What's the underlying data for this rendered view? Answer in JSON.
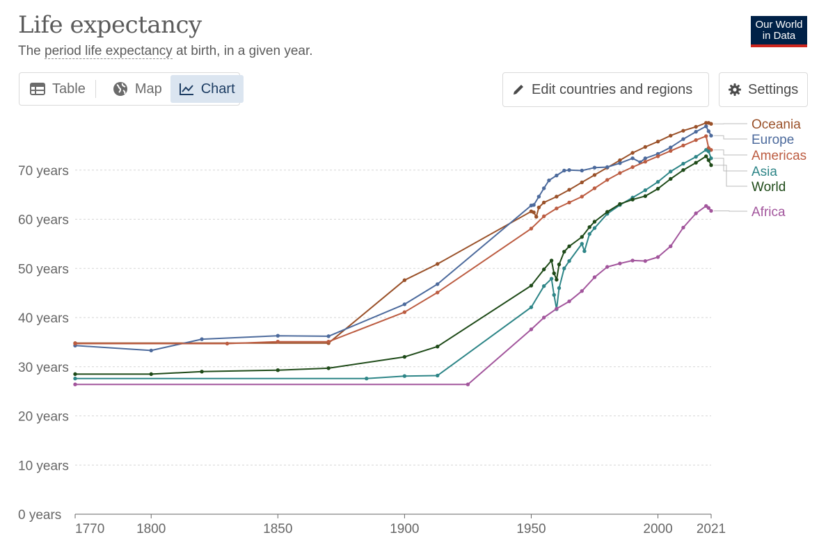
{
  "header": {
    "title": "Life expectancy",
    "subtitle_pre": "The ",
    "subtitle_link": "period life expectancy",
    "subtitle_post": " at birth, in a given year.",
    "logo_line1": "Our World",
    "logo_line2": "in Data"
  },
  "tabs": [
    {
      "label": "Table",
      "icon": "table-icon"
    },
    {
      "label": "Map",
      "icon": "globe-icon"
    },
    {
      "label": "Chart",
      "icon": "line-chart-icon",
      "active": true
    }
  ],
  "controls": {
    "edit_label": "Edit countries and regions",
    "settings_label": "Settings"
  },
  "chart_data": {
    "type": "line",
    "title": "Life expectancy",
    "xlim": [
      1770,
      2021
    ],
    "ylim": [
      0,
      80
    ],
    "x_ticks": [
      {
        "value": 1770,
        "label": "1770"
      },
      {
        "value": 1800,
        "label": "1800"
      },
      {
        "value": 1850,
        "label": "1850"
      },
      {
        "value": 1900,
        "label": "1900"
      },
      {
        "value": 1950,
        "label": "1950"
      },
      {
        "value": 2000,
        "label": "2000"
      },
      {
        "value": 2021,
        "label": "2021"
      }
    ],
    "y_ticks": [
      {
        "value": 0,
        "label": "0 years"
      },
      {
        "value": 10,
        "label": "10 years"
      },
      {
        "value": 20,
        "label": "20 years"
      },
      {
        "value": 30,
        "label": "30 years"
      },
      {
        "value": 40,
        "label": "40 years"
      },
      {
        "value": 50,
        "label": "50 years"
      },
      {
        "value": 60,
        "label": "60 years"
      },
      {
        "value": 70,
        "label": "70 years"
      }
    ],
    "grid": true,
    "legend_position": "right",
    "series": [
      {
        "name": "Oceania",
        "color": "#9a5129",
        "last_value": 79.4,
        "points": [
          [
            1770,
            34.8
          ],
          [
            1870,
            34.8
          ],
          [
            1900,
            47.6
          ],
          [
            1913,
            50.9
          ],
          [
            1950,
            61.6
          ],
          [
            1951,
            61.4
          ],
          [
            1952,
            60.5
          ],
          [
            1953,
            62.4
          ],
          [
            1955,
            63.4
          ],
          [
            1960,
            64.6
          ],
          [
            1965,
            66.0
          ],
          [
            1970,
            67.5
          ],
          [
            1975,
            69.0
          ],
          [
            1980,
            70.5
          ],
          [
            1985,
            72.0
          ],
          [
            1990,
            73.5
          ],
          [
            1995,
            74.7
          ],
          [
            2000,
            75.8
          ],
          [
            2005,
            77.0
          ],
          [
            2010,
            78.0
          ],
          [
            2015,
            78.8
          ],
          [
            2019,
            79.6
          ],
          [
            2020,
            79.6
          ],
          [
            2021,
            79.4
          ]
        ]
      },
      {
        "name": "Europe",
        "color": "#4c6a9c",
        "last_value": 77.0,
        "points": [
          [
            1770,
            34.3
          ],
          [
            1800,
            33.3
          ],
          [
            1820,
            35.6
          ],
          [
            1850,
            36.3
          ],
          [
            1870,
            36.2
          ],
          [
            1900,
            42.7
          ],
          [
            1913,
            46.8
          ],
          [
            1950,
            62.8
          ],
          [
            1951,
            62.9
          ],
          [
            1953,
            64.6
          ],
          [
            1955,
            66.3
          ],
          [
            1957,
            67.9
          ],
          [
            1960,
            68.9
          ],
          [
            1963,
            69.9
          ],
          [
            1965,
            70.0
          ],
          [
            1970,
            69.9
          ],
          [
            1975,
            70.5
          ],
          [
            1980,
            70.6
          ],
          [
            1985,
            71.4
          ],
          [
            1990,
            72.4
          ],
          [
            1993,
            71.6
          ],
          [
            1995,
            72.4
          ],
          [
            2000,
            73.3
          ],
          [
            2005,
            74.6
          ],
          [
            2010,
            76.3
          ],
          [
            2015,
            77.8
          ],
          [
            2019,
            78.9
          ],
          [
            2020,
            77.9
          ],
          [
            2021,
            77.0
          ]
        ]
      },
      {
        "name": "Americas",
        "color": "#bc5c41",
        "last_value": 74.1,
        "points": [
          [
            1770,
            34.7
          ],
          [
            1830,
            34.7
          ],
          [
            1850,
            35.1
          ],
          [
            1870,
            35.1
          ],
          [
            1900,
            41.1
          ],
          [
            1913,
            45.1
          ],
          [
            1950,
            58.1
          ],
          [
            1955,
            60.6
          ],
          [
            1960,
            62.2
          ],
          [
            1965,
            63.4
          ],
          [
            1970,
            64.6
          ],
          [
            1975,
            66.3
          ],
          [
            1980,
            68.0
          ],
          [
            1985,
            69.4
          ],
          [
            1990,
            70.6
          ],
          [
            1995,
            71.7
          ],
          [
            2000,
            72.8
          ],
          [
            2005,
            73.9
          ],
          [
            2010,
            75.0
          ],
          [
            2015,
            76.1
          ],
          [
            2019,
            76.9
          ],
          [
            2020,
            74.5
          ],
          [
            2021,
            74.1
          ]
        ]
      },
      {
        "name": "Asia",
        "color": "#2d8587",
        "last_value": 72.4,
        "points": [
          [
            1770,
            27.6
          ],
          [
            1885,
            27.6
          ],
          [
            1900,
            28.1
          ],
          [
            1913,
            28.2
          ],
          [
            1950,
            42.1
          ],
          [
            1955,
            46.4
          ],
          [
            1958,
            47.9
          ],
          [
            1959,
            44.6
          ],
          [
            1960,
            41.7
          ],
          [
            1961,
            46.0
          ],
          [
            1963,
            50.0
          ],
          [
            1965,
            51.5
          ],
          [
            1970,
            55.0
          ],
          [
            1971,
            53.5
          ],
          [
            1973,
            57.0
          ],
          [
            1975,
            58.2
          ],
          [
            1980,
            61.1
          ],
          [
            1985,
            62.9
          ],
          [
            1990,
            64.4
          ],
          [
            1995,
            65.9
          ],
          [
            2000,
            67.6
          ],
          [
            2005,
            69.7
          ],
          [
            2010,
            71.3
          ],
          [
            2015,
            72.7
          ],
          [
            2019,
            74.1
          ],
          [
            2020,
            73.8
          ],
          [
            2021,
            72.4
          ]
        ]
      },
      {
        "name": "World",
        "color": "#1e4a18",
        "last_value": 71.0,
        "points": [
          [
            1770,
            28.5
          ],
          [
            1800,
            28.5
          ],
          [
            1820,
            29.0
          ],
          [
            1850,
            29.3
          ],
          [
            1870,
            29.7
          ],
          [
            1900,
            32.0
          ],
          [
            1913,
            34.1
          ],
          [
            1950,
            46.5
          ],
          [
            1955,
            49.8
          ],
          [
            1958,
            51.6
          ],
          [
            1959,
            49.0
          ],
          [
            1960,
            47.7
          ],
          [
            1961,
            50.8
          ],
          [
            1963,
            53.4
          ],
          [
            1965,
            54.5
          ],
          [
            1970,
            56.4
          ],
          [
            1973,
            58.4
          ],
          [
            1975,
            59.5
          ],
          [
            1980,
            61.5
          ],
          [
            1985,
            63.1
          ],
          [
            1990,
            64.0
          ],
          [
            1995,
            64.7
          ],
          [
            2000,
            66.2
          ],
          [
            2005,
            68.2
          ],
          [
            2010,
            70.0
          ],
          [
            2015,
            71.5
          ],
          [
            2019,
            72.8
          ],
          [
            2020,
            72.0
          ],
          [
            2021,
            71.0
          ]
        ]
      },
      {
        "name": "Africa",
        "color": "#a2559c",
        "last_value": 61.7,
        "points": [
          [
            1770,
            26.4
          ],
          [
            1925,
            26.4
          ],
          [
            1950,
            37.6
          ],
          [
            1955,
            40.0
          ],
          [
            1960,
            41.8
          ],
          [
            1965,
            43.3
          ],
          [
            1970,
            45.4
          ],
          [
            1975,
            48.2
          ],
          [
            1980,
            50.3
          ],
          [
            1985,
            51.0
          ],
          [
            1990,
            51.6
          ],
          [
            1995,
            51.5
          ],
          [
            2000,
            52.3
          ],
          [
            2005,
            54.5
          ],
          [
            2010,
            58.3
          ],
          [
            2015,
            61.2
          ],
          [
            2019,
            62.7
          ],
          [
            2020,
            62.3
          ],
          [
            2021,
            61.7
          ]
        ]
      }
    ]
  }
}
